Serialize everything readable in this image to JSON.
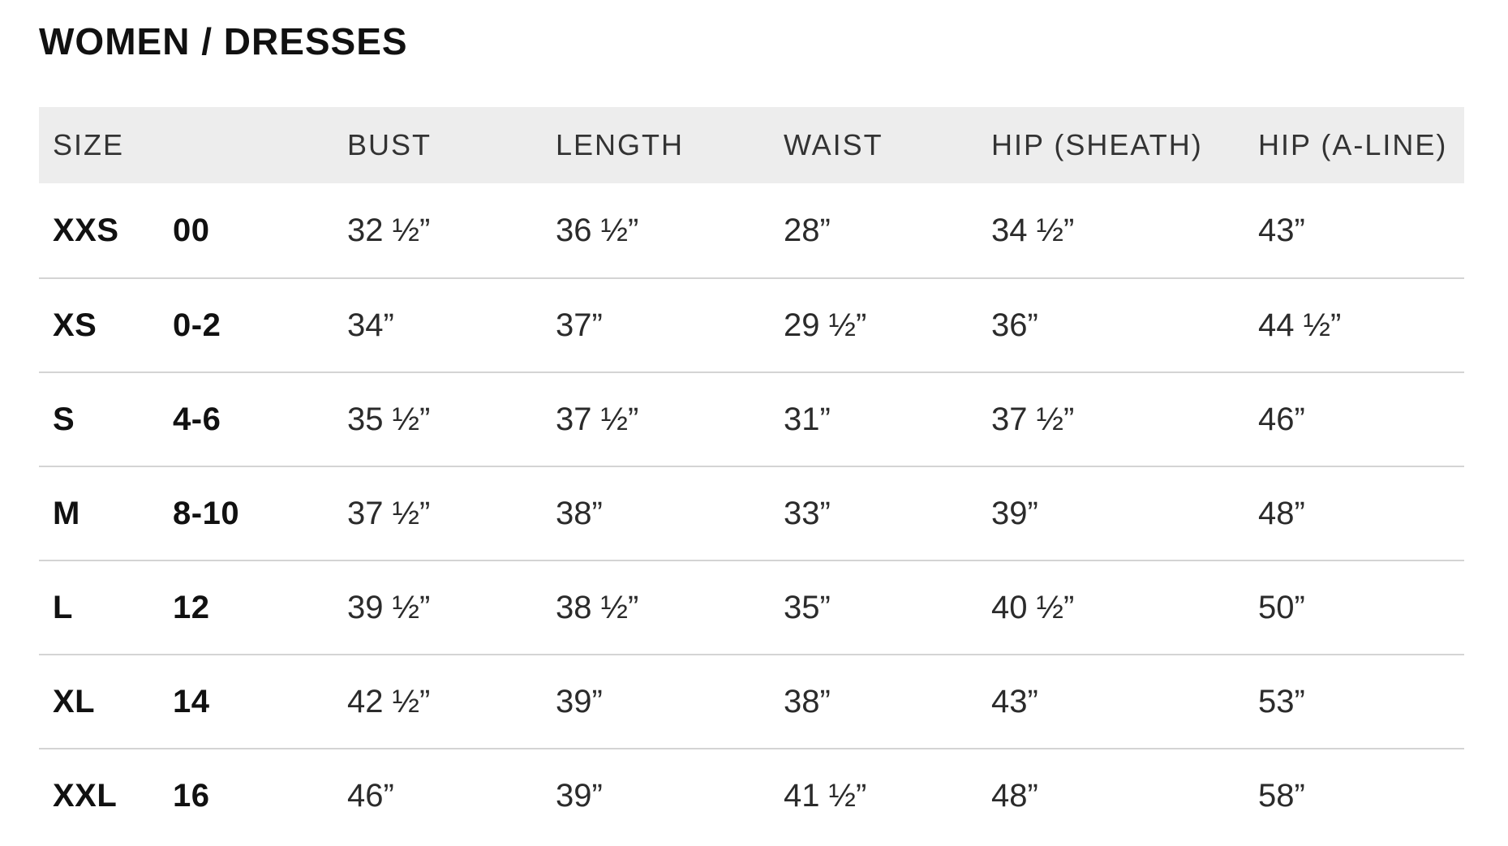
{
  "page": {
    "title": "WOMEN / DRESSES"
  },
  "colors": {
    "header_background": "#ededed",
    "divider": "#d4d4d4",
    "title_text": "#111111",
    "body_text": "#2b2b2b"
  },
  "table": {
    "columns": [
      "SIZE",
      "BUST",
      "LENGTH",
      "WAIST",
      "HIP (SHEATH)",
      "HIP (A-LINE)"
    ],
    "rows": [
      {
        "size_letter": "XXS",
        "size_number": "00",
        "bust": "32 ½”",
        "length": "36 ½”",
        "waist": "28”",
        "hip_sheath": "34 ½”",
        "hip_a_line": "43”"
      },
      {
        "size_letter": "XS",
        "size_number": "0-2",
        "bust": "34”",
        "length": "37”",
        "waist": "29 ½”",
        "hip_sheath": "36”",
        "hip_a_line": "44 ½”"
      },
      {
        "size_letter": "S",
        "size_number": "4-6",
        "bust": "35 ½”",
        "length": "37 ½”",
        "waist": "31”",
        "hip_sheath": "37 ½”",
        "hip_a_line": "46”"
      },
      {
        "size_letter": "M",
        "size_number": "8-10",
        "bust": "37 ½”",
        "length": "38”",
        "waist": "33”",
        "hip_sheath": "39”",
        "hip_a_line": "48”"
      },
      {
        "size_letter": "L",
        "size_number": "12",
        "bust": "39 ½”",
        "length": "38 ½”",
        "waist": "35”",
        "hip_sheath": "40 ½”",
        "hip_a_line": "50”"
      },
      {
        "size_letter": "XL",
        "size_number": "14",
        "bust": "42 ½”",
        "length": "39”",
        "waist": "38”",
        "hip_sheath": "43”",
        "hip_a_line": "53”"
      },
      {
        "size_letter": "XXL",
        "size_number": "16",
        "bust": "46”",
        "length": "39”",
        "waist": "41 ½”",
        "hip_sheath": "48”",
        "hip_a_line": "58”"
      }
    ]
  }
}
